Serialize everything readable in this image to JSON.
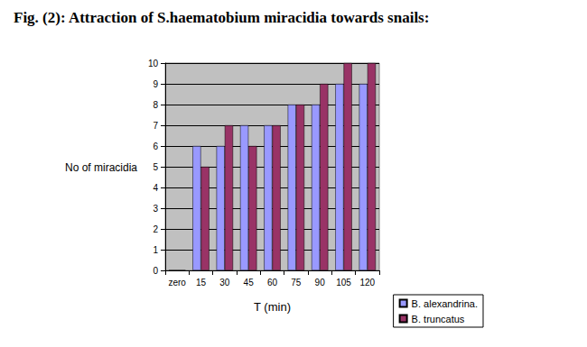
{
  "chart_data": {
    "type": "bar",
    "title": "Fig. (2): Attraction of S.haematobium miracidia towards snails:",
    "x_label": "T (min)",
    "y_label": "No of miracidia",
    "categories": [
      "zero",
      "15",
      "30",
      "45",
      "60",
      "75",
      "90",
      "105",
      "120"
    ],
    "series": [
      {
        "name": "B. alexandrina.",
        "color": "#9999ff",
        "values": [
          0,
          6,
          6,
          7,
          7,
          8,
          8,
          9,
          9
        ]
      },
      {
        "name": "B. truncatus",
        "color": "#993366",
        "values": [
          0,
          5,
          7,
          6,
          7,
          8,
          9,
          10,
          10
        ]
      }
    ],
    "ylim": [
      0,
      10
    ],
    "yticks": [
      0,
      1,
      2,
      3,
      4,
      5,
      6,
      7,
      8,
      9,
      10
    ],
    "grid": true,
    "legend": "lower right"
  }
}
